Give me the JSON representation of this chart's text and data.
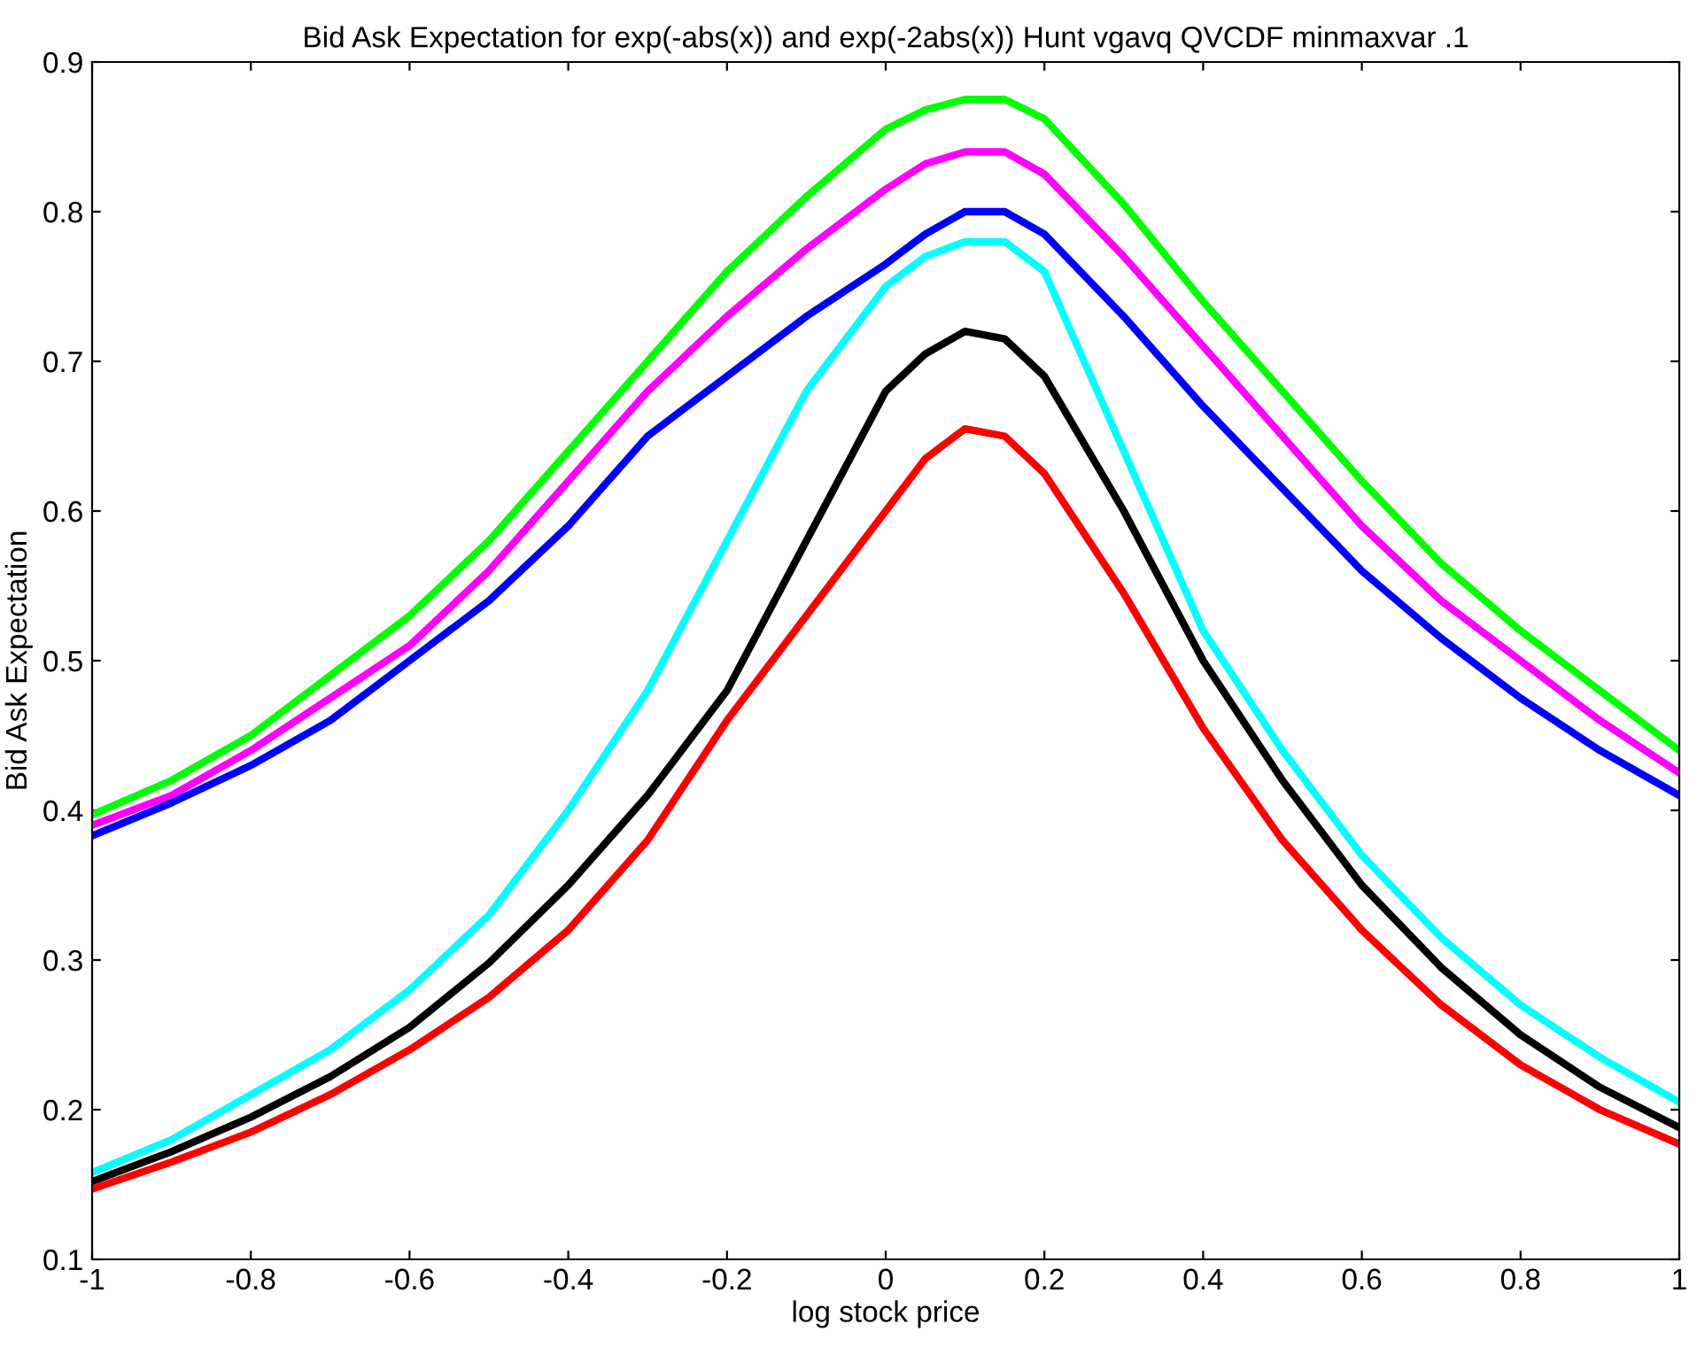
{
  "chart_data": {
    "type": "line",
    "title": "Bid Ask Expectation for exp(-abs(x)) and exp(-2abs(x)) Hunt vgavq QVCDF minmaxvar .1",
    "xlabel": "log stock price",
    "ylabel": "Bid Ask Expectation",
    "x": [
      -1,
      -0.9,
      -0.8,
      -0.7,
      -0.6,
      -0.5,
      -0.4,
      -0.3,
      -0.2,
      -0.1,
      0,
      0.05,
      0.1,
      0.15,
      0.2,
      0.3,
      0.4,
      0.5,
      0.6,
      0.7,
      0.8,
      0.9,
      1
    ],
    "series": [
      {
        "color": "#00ff00",
        "values": [
          0.397,
          0.42,
          0.45,
          0.49,
          0.53,
          0.58,
          0.64,
          0.7,
          0.76,
          0.81,
          0.855,
          0.868,
          0.875,
          0.875,
          0.862,
          0.805,
          0.74,
          0.68,
          0.62,
          0.565,
          0.52,
          0.48,
          0.44
        ]
      },
      {
        "color": "#ff00ff",
        "values": [
          0.39,
          0.41,
          0.44,
          0.475,
          0.51,
          0.56,
          0.62,
          0.68,
          0.73,
          0.775,
          0.815,
          0.832,
          0.84,
          0.84,
          0.825,
          0.77,
          0.71,
          0.65,
          0.59,
          0.54,
          0.5,
          0.46,
          0.425
        ]
      },
      {
        "color": "#0000ff",
        "values": [
          0.383,
          0.405,
          0.43,
          0.46,
          0.5,
          0.54,
          0.59,
          0.65,
          0.69,
          0.73,
          0.765,
          0.785,
          0.8,
          0.8,
          0.785,
          0.73,
          0.67,
          0.615,
          0.56,
          0.515,
          0.475,
          0.44,
          0.41
        ]
      },
      {
        "color": "#00ffff",
        "values": [
          0.158,
          0.18,
          0.21,
          0.24,
          0.28,
          0.33,
          0.4,
          0.48,
          0.58,
          0.68,
          0.75,
          0.77,
          0.78,
          0.78,
          0.76,
          0.64,
          0.52,
          0.44,
          0.37,
          0.315,
          0.27,
          0.235,
          0.205
        ]
      },
      {
        "color": "#000000",
        "values": [
          0.152,
          0.172,
          0.195,
          0.222,
          0.255,
          0.298,
          0.35,
          0.41,
          0.48,
          0.58,
          0.68,
          0.705,
          0.72,
          0.715,
          0.69,
          0.6,
          0.5,
          0.42,
          0.35,
          0.295,
          0.25,
          0.215,
          0.188
        ]
      },
      {
        "color": "#ff0000",
        "values": [
          0.147,
          0.165,
          0.185,
          0.21,
          0.24,
          0.275,
          0.32,
          0.38,
          0.46,
          0.53,
          0.6,
          0.635,
          0.655,
          0.65,
          0.625,
          0.545,
          0.455,
          0.38,
          0.32,
          0.27,
          0.23,
          0.2,
          0.177
        ]
      }
    ],
    "xlim": [
      -1,
      1
    ],
    "ylim": [
      0.1,
      0.9
    ],
    "xticks": [
      -1,
      -0.8,
      -0.6,
      -0.4,
      -0.2,
      0,
      0.2,
      0.4,
      0.6,
      0.8,
      1
    ],
    "yticks": [
      0.1,
      0.2,
      0.3,
      0.4,
      0.5,
      0.6,
      0.7,
      0.8,
      0.9
    ],
    "grid": false,
    "marker": "none",
    "line_style": "solid"
  }
}
